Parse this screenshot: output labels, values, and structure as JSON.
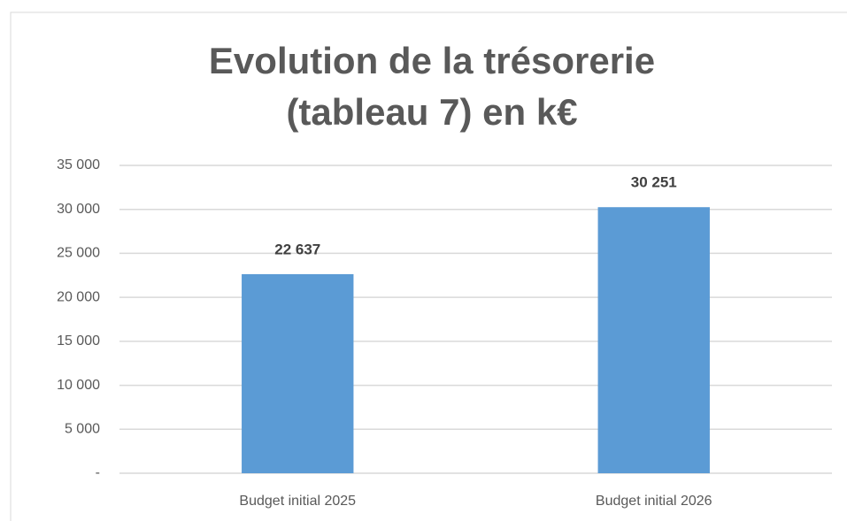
{
  "chart_data": {
    "type": "bar",
    "title": [
      "Evolution de la trésorerie",
      "(tableau 7) en k€"
    ],
    "categories": [
      "Budget initial 2025",
      "Budget initial 2026"
    ],
    "values": [
      22637,
      30251
    ],
    "value_labels": [
      "22 637",
      "30 251"
    ],
    "color": "#5b9bd5",
    "ylim": [
      0,
      35000
    ],
    "yticks": [
      {
        "value": 0,
        "label": "-"
      },
      {
        "value": 5000,
        "label": "5 000"
      },
      {
        "value": 10000,
        "label": "10 000"
      },
      {
        "value": 15000,
        "label": "15 000"
      },
      {
        "value": 20000,
        "label": "20 000"
      },
      {
        "value": 25000,
        "label": "25 000"
      },
      {
        "value": 30000,
        "label": "30 000"
      },
      {
        "value": 35000,
        "label": "35 000"
      }
    ],
    "grid": true
  }
}
